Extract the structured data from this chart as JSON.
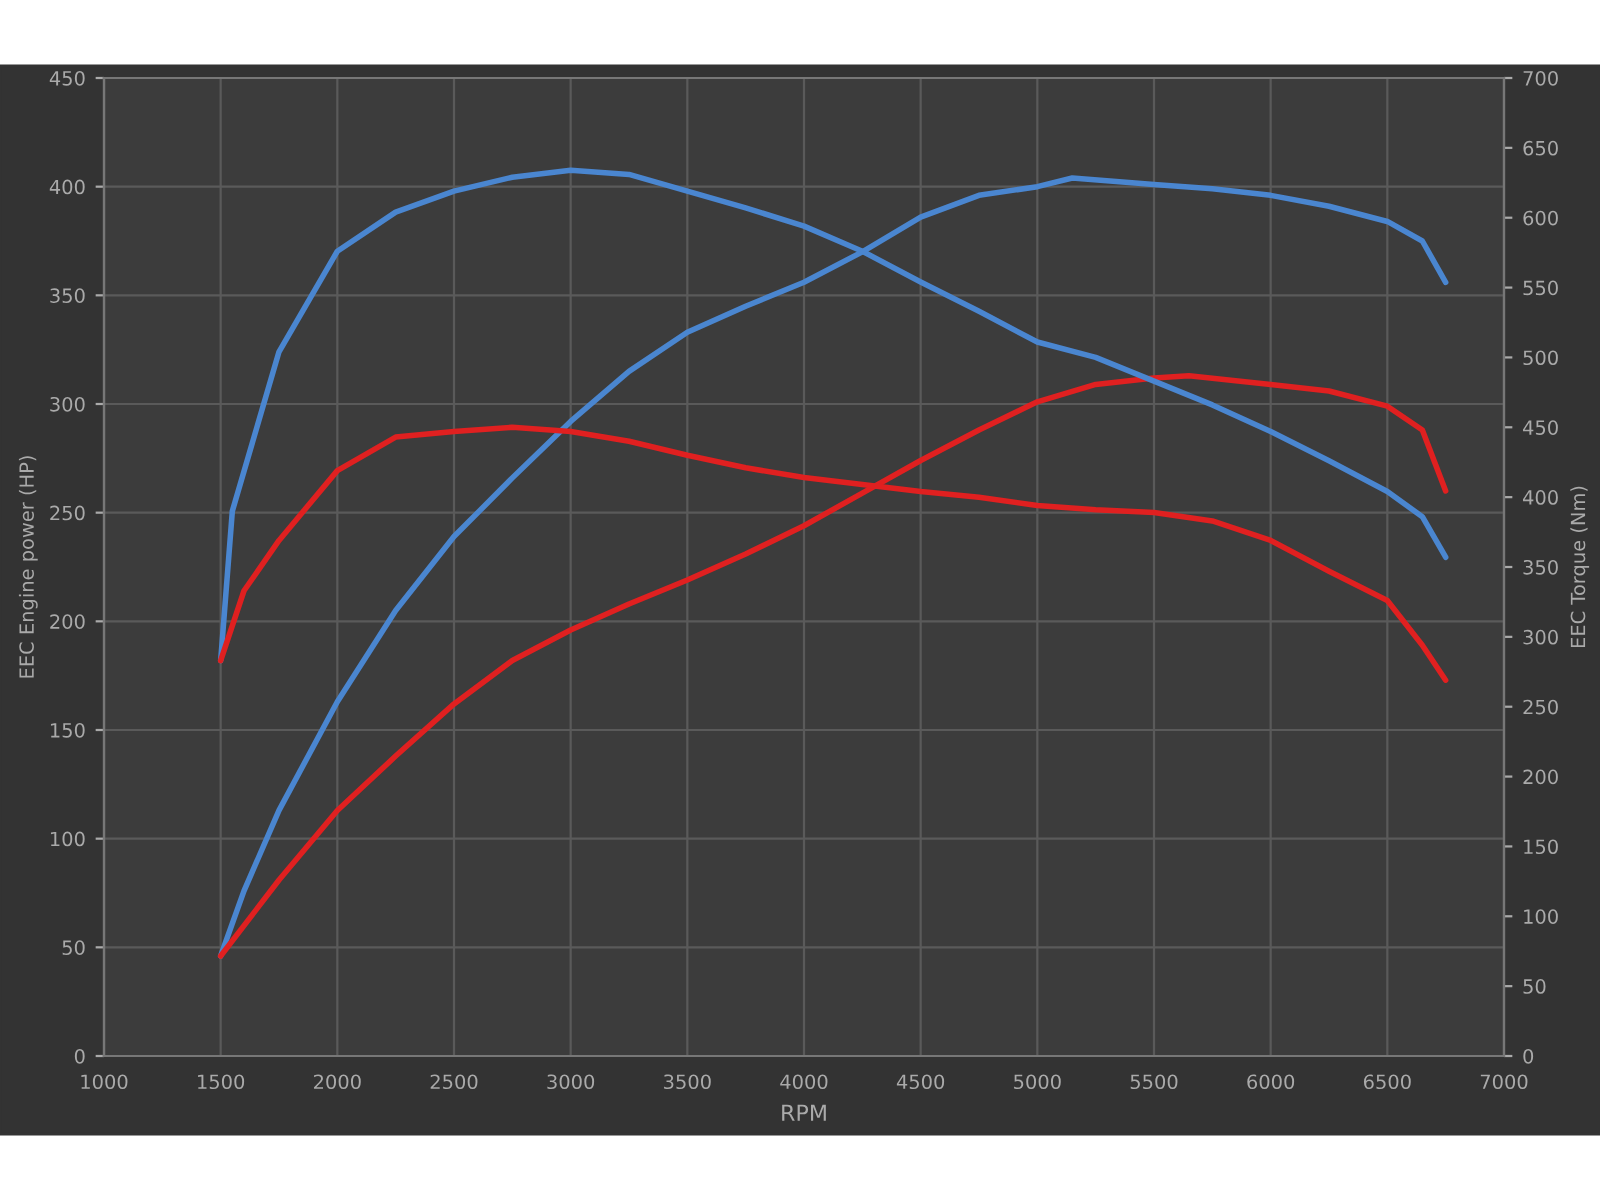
{
  "chart_data": {
    "type": "line",
    "xlabel": "RPM",
    "ylabel": "EEC Engine power (HP)",
    "y2label": "EEC Torque (Nm)",
    "xlim": [
      1000,
      7000
    ],
    "xticks": [
      1000,
      1500,
      2000,
      2500,
      3000,
      3500,
      4000,
      4500,
      5000,
      5500,
      6000,
      6500,
      7000
    ],
    "ylim": [
      0,
      450
    ],
    "yticks": [
      0,
      50,
      100,
      150,
      200,
      250,
      300,
      350,
      400,
      450
    ],
    "y2lim": [
      0,
      700
    ],
    "y2ticks": [
      0,
      50,
      100,
      150,
      200,
      250,
      300,
      350,
      400,
      450,
      500,
      550,
      600,
      650,
      700
    ],
    "grid": true,
    "marker": "none",
    "line_style": "solid",
    "series": [
      {
        "color": "#4a86d0",
        "x": [
          1500,
          1600,
          1750,
          2000,
          2250,
          2500,
          2750,
          3000,
          3250,
          3500,
          3750,
          4000,
          4250,
          4500,
          4750,
          5000,
          5150,
          5500,
          5750,
          6000,
          6250,
          6500,
          6650,
          6750
        ],
        "values": [
          46,
          76,
          113,
          163,
          205,
          239,
          266,
          292,
          315,
          333,
          345,
          356,
          370,
          386,
          396,
          400,
          404,
          401,
          399,
          396,
          391,
          384,
          375,
          356
        ]
      },
      {
        "color": "#e02020",
        "x": [
          1500,
          1750,
          2000,
          2250,
          2500,
          2750,
          3000,
          3250,
          3500,
          3750,
          4000,
          4250,
          4500,
          4750,
          5000,
          5250,
          5500,
          5650,
          6000,
          6250,
          6500,
          6650,
          6750
        ],
        "values": [
          46,
          81,
          113,
          138,
          162,
          182,
          196,
          208,
          219,
          231,
          244,
          259,
          274,
          288,
          301,
          309,
          312,
          313,
          309,
          306,
          299,
          288,
          260
        ]
      },
      {
        "color": "#4a86d0",
        "axis": "y2",
        "x": [
          1500,
          1550,
          1750,
          2000,
          2250,
          2500,
          2750,
          3000,
          3250,
          3500,
          3750,
          4000,
          4250,
          4500,
          4750,
          5000,
          5250,
          5500,
          5750,
          6000,
          6250,
          6500,
          6650,
          6750
        ],
        "values": [
          283,
          390,
          504,
          576,
          604,
          619,
          629,
          634,
          631,
          619,
          607,
          594,
          576,
          554,
          533,
          511,
          500,
          483,
          466,
          447,
          426,
          404,
          386,
          357
        ]
      },
      {
        "color": "#e02020",
        "axis": "y2",
        "x": [
          1500,
          1600,
          1750,
          2000,
          2250,
          2500,
          2750,
          3000,
          3250,
          3500,
          3750,
          4000,
          4250,
          4500,
          4750,
          5000,
          5250,
          5500,
          5750,
          6000,
          6250,
          6500,
          6650,
          6750
        ],
        "values": [
          283,
          333,
          369,
          419,
          443,
          447,
          450,
          447,
          440,
          430,
          421,
          414,
          409,
          404,
          400,
          394,
          391,
          389,
          383,
          369,
          347,
          326,
          294,
          269
        ]
      }
    ]
  }
}
